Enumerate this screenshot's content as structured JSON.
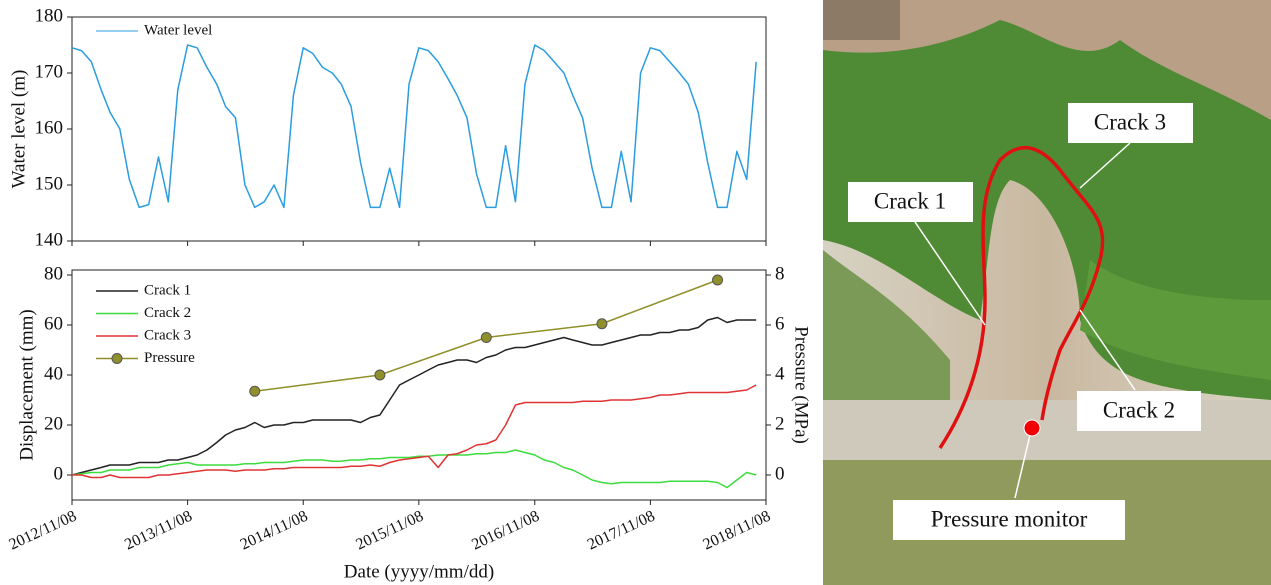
{
  "chart_data": [
    {
      "type": "line",
      "ylabel": "Water level (m)",
      "x": [
        "2012/11/08",
        "2012/12/08",
        "2013/01/08",
        "2013/02/08",
        "2013/03/08",
        "2013/04/08",
        "2013/05/08",
        "2013/06/08",
        "2013/07/08",
        "2013/08/08",
        "2013/09/08",
        "2013/10/08",
        "2013/11/08",
        "2013/12/08",
        "2014/01/08",
        "2014/02/08",
        "2014/03/08",
        "2014/04/08",
        "2014/05/08",
        "2014/06/08",
        "2014/07/08",
        "2014/08/08",
        "2014/09/08",
        "2014/10/08",
        "2014/11/08",
        "2014/12/08",
        "2015/01/08",
        "2015/02/08",
        "2015/03/08",
        "2015/04/08",
        "2015/05/08",
        "2015/06/08",
        "2015/07/08",
        "2015/08/08",
        "2015/09/08",
        "2015/10/08",
        "2015/11/08",
        "2015/12/08",
        "2016/01/08",
        "2016/02/08",
        "2016/03/08",
        "2016/04/08",
        "2016/05/08",
        "2016/06/08",
        "2016/07/08",
        "2016/08/08",
        "2016/09/08",
        "2016/10/08",
        "2016/11/08",
        "2016/12/08",
        "2017/01/08",
        "2017/02/08",
        "2017/03/08",
        "2017/04/08",
        "2017/05/08",
        "2017/06/08",
        "2017/07/08",
        "2017/08/08",
        "2017/09/08",
        "2017/10/08",
        "2017/11/08",
        "2017/12/08",
        "2018/01/08",
        "2018/02/08",
        "2018/03/08",
        "2018/04/08",
        "2018/05/08",
        "2018/06/08",
        "2018/07/08",
        "2018/08/08",
        "2018/09/08",
        "2018/10/08"
      ],
      "xlim": [
        "2012/11/08",
        "2018/11/08"
      ],
      "ylim": [
        140,
        180
      ],
      "yticks": [
        140,
        150,
        160,
        170,
        180
      ],
      "legend": "upper left",
      "series": [
        {
          "name": "Water level",
          "color": "#2a9de0",
          "values": [
            174.5,
            174,
            172,
            167,
            163,
            160,
            151,
            146,
            146.5,
            155,
            147,
            167,
            175,
            174.5,
            171,
            168,
            164,
            162,
            150,
            146,
            147,
            150,
            146,
            166,
            174.5,
            173.5,
            171,
            170,
            168,
            164,
            154,
            146,
            146,
            153,
            146,
            168,
            174.5,
            174,
            172,
            169,
            166,
            162,
            152,
            146,
            146,
            157,
            147,
            168,
            175,
            174,
            172,
            170,
            166,
            162,
            153,
            146,
            146,
            156,
            147,
            170,
            174.5,
            174,
            172,
            170,
            168,
            163,
            154,
            146,
            146,
            156,
            151,
            172
          ]
        }
      ]
    },
    {
      "type": "line",
      "xlabel": "Date (yyyy/mm/dd)",
      "ylabel": "Displacement (mm)",
      "y2label": "Pressure (MPa)",
      "x": [
        "2012/11/08",
        "2012/12/08",
        "2013/01/08",
        "2013/02/08",
        "2013/03/08",
        "2013/04/08",
        "2013/05/08",
        "2013/06/08",
        "2013/07/08",
        "2013/08/08",
        "2013/09/08",
        "2013/10/08",
        "2013/11/08",
        "2013/12/08",
        "2014/01/08",
        "2014/02/08",
        "2014/03/08",
        "2014/04/08",
        "2014/05/08",
        "2014/06/08",
        "2014/07/08",
        "2014/08/08",
        "2014/09/08",
        "2014/10/08",
        "2014/11/08",
        "2014/12/08",
        "2015/01/08",
        "2015/02/08",
        "2015/03/08",
        "2015/04/08",
        "2015/05/08",
        "2015/06/08",
        "2015/07/08",
        "2015/08/08",
        "2015/09/08",
        "2015/10/08",
        "2015/11/08",
        "2015/12/08",
        "2016/01/08",
        "2016/02/08",
        "2016/03/08",
        "2016/04/08",
        "2016/05/08",
        "2016/06/08",
        "2016/07/08",
        "2016/08/08",
        "2016/09/08",
        "2016/10/08",
        "2016/11/08",
        "2016/12/08",
        "2017/01/08",
        "2017/02/08",
        "2017/03/08",
        "2017/04/08",
        "2017/05/08",
        "2017/06/08",
        "2017/07/08",
        "2017/08/08",
        "2017/09/08",
        "2017/10/08",
        "2017/11/08",
        "2017/12/08",
        "2018/01/08",
        "2018/02/08",
        "2018/03/08",
        "2018/04/08",
        "2018/05/08",
        "2018/06/08",
        "2018/07/08",
        "2018/08/08",
        "2018/09/08",
        "2018/10/08"
      ],
      "xlim": [
        "2012/11/08",
        "2018/11/08"
      ],
      "xticks": [
        "2012/11/08",
        "2013/11/08",
        "2014/11/08",
        "2015/11/08",
        "2016/11/08",
        "2017/11/08",
        "2018/11/08"
      ],
      "ylim": [
        -10,
        82
      ],
      "yticks": [
        0,
        20,
        40,
        60,
        80
      ],
      "y2lim": [
        -1,
        8.2
      ],
      "y2ticks": [
        0,
        2,
        4,
        6,
        8
      ],
      "legend": "upper left",
      "series": [
        {
          "name": "Crack 1",
          "color": "#222222",
          "values": [
            0,
            1,
            2,
            3,
            4,
            4,
            4,
            5,
            5,
            5,
            6,
            6,
            7,
            8,
            10,
            13,
            16,
            18,
            19,
            21,
            19,
            20,
            20,
            21,
            21,
            22,
            22,
            22,
            22,
            22,
            21,
            23,
            24,
            30,
            36,
            38,
            40,
            42,
            44,
            45,
            46,
            46,
            45,
            47,
            48,
            50,
            51,
            51,
            52,
            53,
            54,
            55,
            54,
            53,
            52,
            52,
            53,
            54,
            55,
            56,
            56,
            57,
            57,
            58,
            58,
            59,
            62,
            63,
            61,
            62,
            62,
            62
          ]
        },
        {
          "name": "Crack 2",
          "color": "#3ddc3d",
          "values": [
            0,
            0.5,
            1,
            1,
            2,
            2,
            2,
            3,
            3,
            3,
            4,
            4.5,
            5,
            4,
            4,
            4,
            4,
            4,
            4.5,
            4.5,
            5,
            5,
            5,
            5.5,
            6,
            6,
            6,
            5.5,
            5.5,
            6,
            6,
            6.5,
            6.5,
            7,
            7,
            7,
            7.5,
            7.5,
            8,
            8,
            8,
            8,
            8.5,
            8.5,
            9,
            9,
            10,
            9,
            8,
            6,
            5,
            3,
            2,
            0,
            -2,
            -3,
            -3.5,
            -3,
            -3,
            -3,
            -3,
            -3,
            -2.5,
            -2.5,
            -2.5,
            -2.5,
            -2.5,
            -3,
            -5,
            -2,
            1,
            0
          ]
        },
        {
          "name": "Crack 3",
          "color": "#e03333",
          "values": [
            0,
            0,
            -1,
            -1,
            0,
            -1,
            -1,
            -1,
            -1,
            0,
            0,
            0.5,
            1,
            1.5,
            2,
            2,
            2,
            1.5,
            2,
            2,
            2,
            2.5,
            2.5,
            3,
            3,
            3,
            3,
            3,
            3,
            3.5,
            3.5,
            4,
            3.5,
            5,
            6,
            6.5,
            7,
            7.5,
            3,
            8,
            8.5,
            10,
            12,
            12.5,
            14,
            20,
            28,
            29,
            29,
            29,
            29,
            29,
            29,
            29.5,
            29.5,
            29.5,
            30,
            30,
            30,
            30.5,
            31,
            32,
            32,
            32.5,
            33,
            33,
            33,
            33,
            33,
            33.5,
            34,
            36
          ]
        },
        {
          "name": "Pressure",
          "color": "#8f8f2c",
          "axis": "y2",
          "marker": "circle",
          "x": [
            "2014/06/08",
            "2015/07/08",
            "2016/06/08",
            "2017/06/08",
            "2018/06/08"
          ],
          "values": [
            3.35,
            4.0,
            5.5,
            6.05,
            7.8
          ]
        }
      ]
    }
  ],
  "photo": {
    "labels": [
      "Crack 3",
      "Crack 1",
      "Crack 2",
      "Pressure monitor"
    ]
  }
}
